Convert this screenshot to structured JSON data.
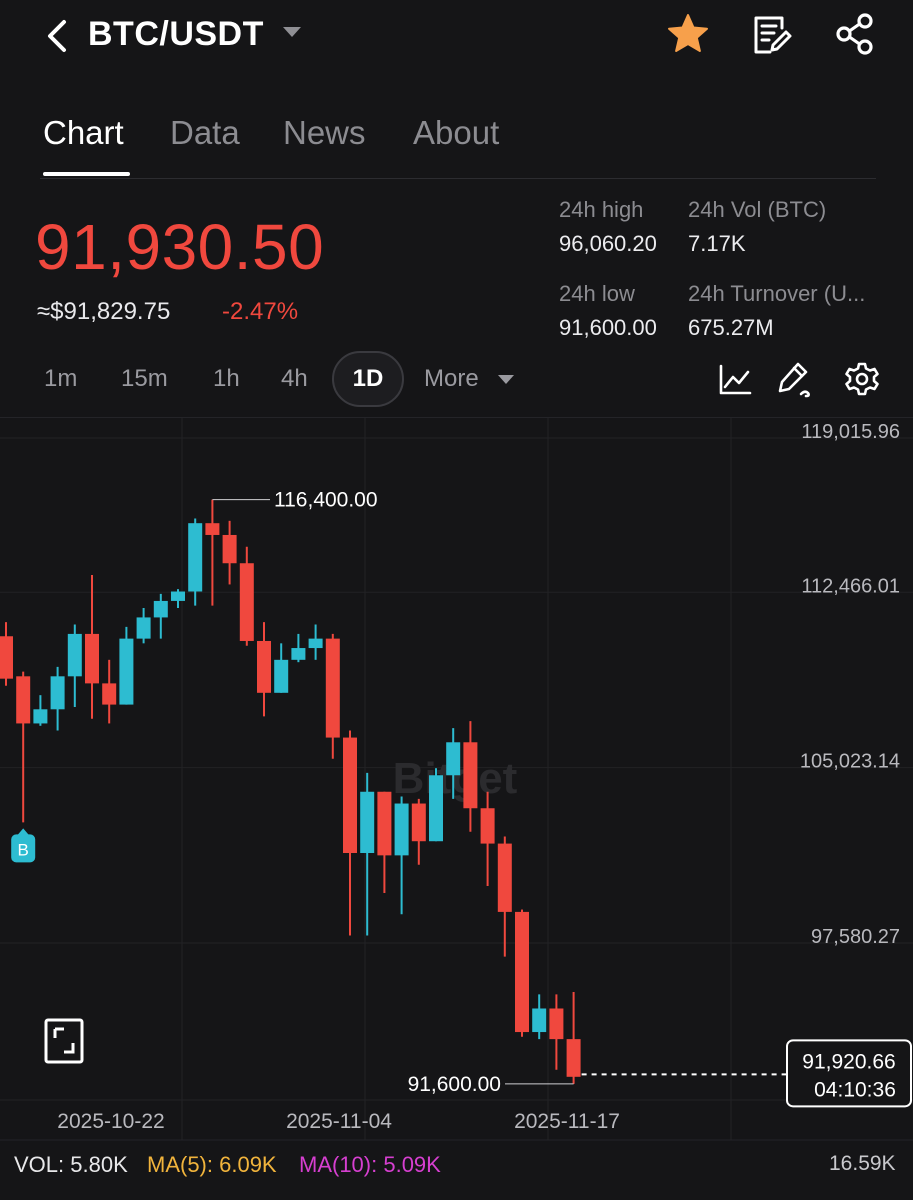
{
  "header": {
    "pair": "BTC/USDT",
    "icons": [
      "back-icon",
      "dropdown-caret-icon",
      "favorite-star-icon",
      "notes-icon",
      "share-icon"
    ],
    "star_color": "#f7a04b"
  },
  "tabs": [
    {
      "label": "Chart",
      "active": true
    },
    {
      "label": "Data",
      "active": false
    },
    {
      "label": "News",
      "active": false
    },
    {
      "label": "About",
      "active": false
    }
  ],
  "price": {
    "last": "91,930.50",
    "approx_usd": "≈$91,829.75",
    "change_pct": "-2.47%",
    "down_color": "#f0483e",
    "up_color": "#2dbcd1"
  },
  "stats": {
    "high_label": "24h high",
    "high_value": "96,060.20",
    "low_label": "24h low",
    "low_value": "91,600.00",
    "vol_label": "24h Vol (BTC)",
    "vol_value": "7.17K",
    "turnover_label": "24h Turnover (U...",
    "turnover_value": "675.27M"
  },
  "intervals": {
    "items": [
      "1m",
      "15m",
      "1h",
      "4h"
    ],
    "active": "1D",
    "more": "More",
    "tool_icons": [
      "indicator-line-icon",
      "drawing-pen-icon",
      "settings-gear-icon"
    ]
  },
  "chart_data": {
    "type": "candlestick",
    "y_ticks": [
      "119,015.96",
      "112,466.01",
      "105,023.14",
      "97,580.27"
    ],
    "x_ticks": [
      "2025-10-22",
      "2025-11-04",
      "2025-11-17"
    ],
    "high_marker": "116,400.00",
    "low_marker": "91,600.00",
    "current_price_tag": "91,920.66",
    "countdown": "04:10:36",
    "buy_marker": "B",
    "candles": [
      {
        "o": 110600,
        "h": 111200,
        "c": 108800,
        "l": 108500
      },
      {
        "o": 108900,
        "h": 109100,
        "c": 106900,
        "l": 102700
      },
      {
        "o": 106900,
        "h": 108100,
        "c": 107500,
        "l": 106800
      },
      {
        "o": 107500,
        "h": 109300,
        "c": 108900,
        "l": 106600
      },
      {
        "o": 108900,
        "h": 111100,
        "c": 110700,
        "l": 107600
      },
      {
        "o": 110700,
        "h": 113200,
        "c": 108600,
        "l": 107100
      },
      {
        "o": 108600,
        "h": 109600,
        "c": 107700,
        "l": 106900
      },
      {
        "o": 107700,
        "h": 111000,
        "c": 110500,
        "l": 107700
      },
      {
        "o": 110500,
        "h": 111800,
        "c": 111400,
        "l": 110300
      },
      {
        "o": 111400,
        "h": 112400,
        "c": 112100,
        "l": 110500
      },
      {
        "o": 112100,
        "h": 112600,
        "c": 112500,
        "l": 111800
      },
      {
        "o": 112500,
        "h": 115600,
        "c": 115400,
        "l": 111900
      },
      {
        "o": 115400,
        "h": 116400,
        "c": 114900,
        "l": 111900
      },
      {
        "o": 114900,
        "h": 115500,
        "c": 113700,
        "l": 112800
      },
      {
        "o": 113700,
        "h": 114400,
        "c": 110400,
        "l": 110200
      },
      {
        "o": 110400,
        "h": 111200,
        "c": 108200,
        "l": 107200
      },
      {
        "o": 108200,
        "h": 110300,
        "c": 109600,
        "l": 108200
      },
      {
        "o": 109600,
        "h": 110700,
        "c": 110100,
        "l": 109500
      },
      {
        "o": 110100,
        "h": 111100,
        "c": 110500,
        "l": 109600
      },
      {
        "o": 110500,
        "h": 110700,
        "c": 106300,
        "l": 105400
      },
      {
        "o": 106300,
        "h": 106600,
        "c": 101400,
        "l": 97900
      },
      {
        "o": 101400,
        "h": 104800,
        "c": 104000,
        "l": 97900
      },
      {
        "o": 104000,
        "h": 104000,
        "c": 101300,
        "l": 99700
      },
      {
        "o": 101300,
        "h": 103800,
        "c": 103500,
        "l": 98800
      },
      {
        "o": 103500,
        "h": 103700,
        "c": 101900,
        "l": 100900
      },
      {
        "o": 101900,
        "h": 105000,
        "c": 104700,
        "l": 101900
      },
      {
        "o": 104700,
        "h": 106700,
        "c": 106100,
        "l": 103700
      },
      {
        "o": 106100,
        "h": 107000,
        "c": 103300,
        "l": 102300
      },
      {
        "o": 103300,
        "h": 104000,
        "c": 101800,
        "l": 100000
      },
      {
        "o": 101800,
        "h": 102100,
        "c": 98900,
        "l": 97000
      },
      {
        "o": 98900,
        "h": 99000,
        "c": 93800,
        "l": 93600
      },
      {
        "o": 93800,
        "h": 95400,
        "c": 94800,
        "l": 93500
      },
      {
        "o": 94800,
        "h": 95400,
        "c": 93500,
        "l": 92200
      },
      {
        "o": 93500,
        "h": 95500,
        "c": 91900,
        "l": 91600
      }
    ],
    "grid": true
  },
  "volume": {
    "vol": "VOL: 5.80K",
    "ma5": "MA(5): 6.09K",
    "ma10": "MA(10): 5.09K",
    "max": "16.59K",
    "ma5_color": "#f1b43c",
    "ma10_color": "#d63fd0"
  }
}
